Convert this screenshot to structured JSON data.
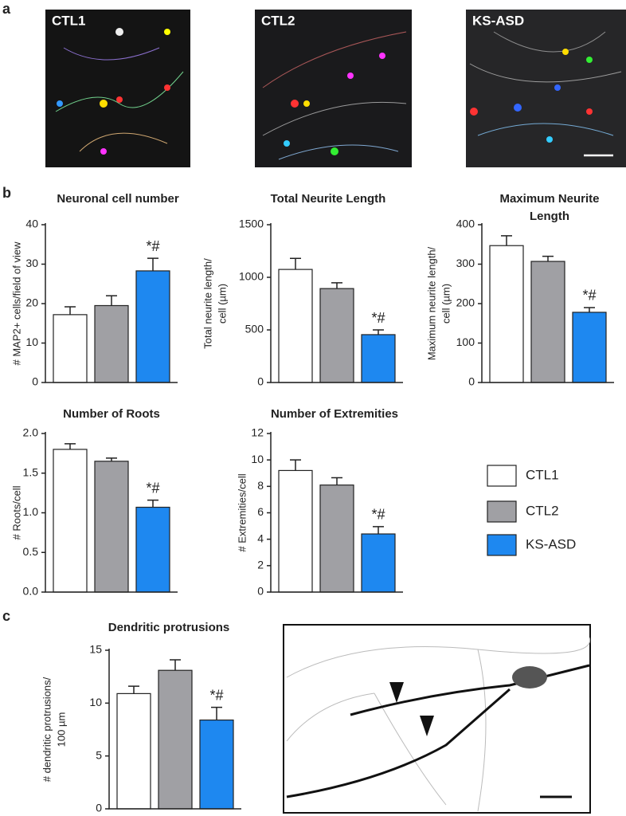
{
  "panels": [
    "a",
    "b",
    "c"
  ],
  "images": {
    "labels": [
      "CTL1",
      "CTL2",
      "KS-ASD"
    ]
  },
  "legend": {
    "entries": [
      {
        "name": "CTL1",
        "color": "#ffffff"
      },
      {
        "name": "CTL2",
        "color": "#a0a0a4"
      },
      {
        "name": "KS-ASD",
        "color": "#1e88f0"
      }
    ]
  },
  "chart_data": [
    {
      "type": "bar",
      "title": [
        "Neuronal cell number"
      ],
      "ylabel": [
        "# MAP2+ cells/field of view"
      ],
      "values": [
        17.2,
        19.5,
        28.3
      ],
      "errors": [
        2.0,
        2.5,
        3.2
      ],
      "annotation": "*#",
      "ylim": [
        0,
        40
      ],
      "yticks": [
        0,
        10,
        20,
        30,
        40
      ]
    },
    {
      "type": "bar",
      "title": [
        "Total Neurite Length"
      ],
      "ylabel": [
        "Total neurite length/",
        "cell (µm)"
      ],
      "values": [
        1075,
        893,
        455
      ],
      "errors": [
        105,
        55,
        45
      ],
      "annotation": "*#",
      "ylim": [
        0,
        1500
      ],
      "yticks": [
        0,
        500,
        1000,
        1500
      ]
    },
    {
      "type": "bar",
      "title": [
        "Maximum Neurite",
        "Length"
      ],
      "ylabel": [
        "Maximum neurite length/",
        "cell (µm)"
      ],
      "values": [
        347,
        307,
        178
      ],
      "errors": [
        25,
        13,
        12
      ],
      "annotation": "*#",
      "ylim": [
        0,
        400
      ],
      "yticks": [
        0,
        100,
        200,
        300,
        400
      ]
    },
    {
      "type": "bar",
      "title": [
        "Number of Roots"
      ],
      "ylabel": [
        "# Roots/cell"
      ],
      "values": [
        1.8,
        1.65,
        1.07
      ],
      "errors": [
        0.07,
        0.04,
        0.09
      ],
      "annotation": "*#",
      "ylim": [
        0,
        2
      ],
      "yticks": [
        {
          "value": 0,
          "label": "0.0"
        },
        {
          "value": 0.5,
          "label": "0.5"
        },
        {
          "value": 1,
          "label": "1.0"
        },
        {
          "value": 1.5,
          "label": "1.5"
        },
        {
          "value": 2,
          "label": "2.0"
        }
      ]
    },
    {
      "type": "bar",
      "title": [
        "Number of Extremities"
      ],
      "ylabel": [
        "# Extremities/cell"
      ],
      "values": [
        9.2,
        8.1,
        4.4
      ],
      "errors": [
        0.8,
        0.55,
        0.55
      ],
      "annotation": "*#",
      "ylim": [
        0,
        12
      ],
      "yticks": [
        0,
        2,
        4,
        6,
        8,
        10,
        12
      ]
    },
    {
      "type": "bar",
      "title": [
        "Dendritic protrusions"
      ],
      "ylabel": [
        "# dendritic protrusions/",
        "100 µm"
      ],
      "values": [
        10.9,
        13.1,
        8.4
      ],
      "errors": [
        0.7,
        1.0,
        1.2
      ],
      "annotation": "*#",
      "ylim": [
        0,
        15
      ],
      "yticks": [
        0,
        5,
        10,
        15
      ]
    }
  ]
}
